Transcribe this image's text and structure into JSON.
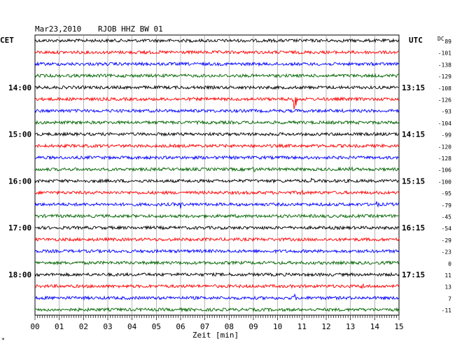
{
  "header": {
    "date": "Mar23,2010",
    "station": "RJOB HHZ BW 01"
  },
  "labels": {
    "left_tz": "CET",
    "right_tz": "UTC",
    "dc": "DC",
    "footnote": "*"
  },
  "chart_data": {
    "type": "line",
    "title": "",
    "xlabel": "Zeit [min]",
    "x_ticks": [
      "00",
      "01",
      "02",
      "03",
      "04",
      "05",
      "06",
      "07",
      "08",
      "09",
      "10",
      "11",
      "12",
      "13",
      "14",
      "15"
    ],
    "xlim": [
      0,
      15
    ],
    "trace_colors": [
      "#000000",
      "#ff0000",
      "#0000ff",
      "#006400"
    ],
    "traces_count": 24,
    "left_hour_labels": [
      {
        "row": 4,
        "label": "14:00"
      },
      {
        "row": 8,
        "label": "15:00"
      },
      {
        "row": 12,
        "label": "16:00"
      },
      {
        "row": 16,
        "label": "17:00"
      },
      {
        "row": 20,
        "label": "18:00"
      }
    ],
    "right_hour_labels": [
      {
        "row": 4,
        "label": "13:15"
      },
      {
        "row": 8,
        "label": "14:15"
      },
      {
        "row": 12,
        "label": "15:15"
      },
      {
        "row": 16,
        "label": "16:15"
      },
      {
        "row": 20,
        "label": "17:15"
      }
    ],
    "dc_offsets": [
      "89",
      "-101",
      "-138",
      "-129",
      "-108",
      "-126",
      "-93",
      "-104",
      "-99",
      "-120",
      "-128",
      "-106",
      "-100",
      "-95",
      "-79",
      "-45",
      "-54",
      "-29",
      "-23",
      "0",
      "11",
      "13",
      "7",
      "-11"
    ],
    "events": [
      {
        "row": 5,
        "x_min": 10.7,
        "amplitude": "large"
      },
      {
        "row": 14,
        "x_min": 6.0,
        "amplitude": "small"
      },
      {
        "row": 14,
        "x_min": 14.1,
        "amplitude": "small"
      },
      {
        "row": 11,
        "x_min": 9.0,
        "amplitude": "small"
      },
      {
        "row": 11,
        "x_min": 13.0,
        "amplitude": "small"
      },
      {
        "row": 13,
        "x_min": 11.0,
        "amplitude": "small"
      },
      {
        "row": 12,
        "x_min": 11.4,
        "amplitude": "small"
      },
      {
        "row": 21,
        "x_min": 13.5,
        "amplitude": "small"
      },
      {
        "row": 22,
        "x_min": 10.7,
        "amplitude": "small"
      },
      {
        "row": 1,
        "x_min": 4.5,
        "amplitude": "small"
      }
    ]
  }
}
